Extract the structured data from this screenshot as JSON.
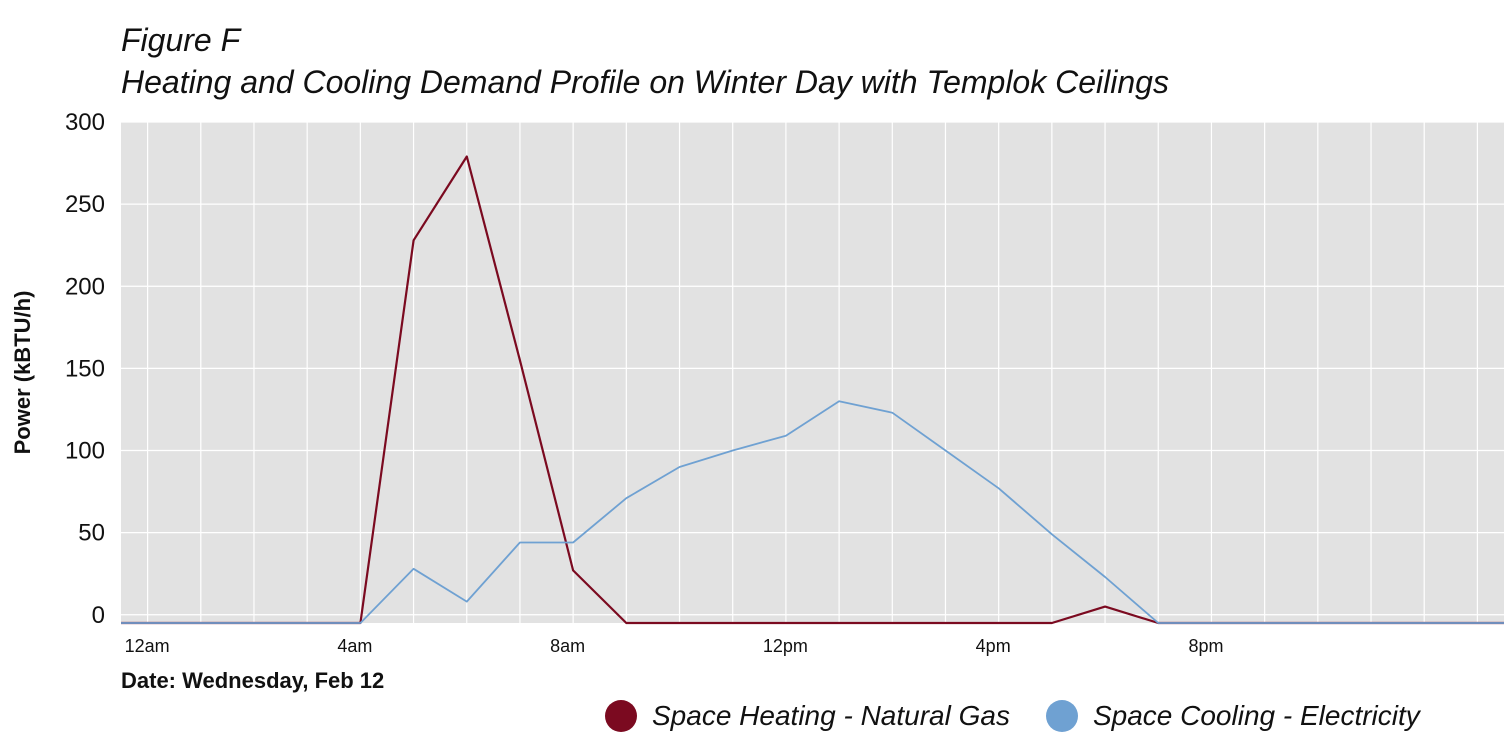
{
  "figure": {
    "title": "Figure F",
    "subtitle": "Heating and Cooling Demand Profile on Winter Day with Templok Ceilings"
  },
  "chart_data": {
    "type": "line",
    "title": "Figure F",
    "subtitle": "Heating and Cooling Demand Profile on Winter Day with Templok Ceilings",
    "xlabel": "Date: Wednesday, Feb 12",
    "ylabel": "Power (kBTU/h)",
    "x_unit": "hour of day",
    "xlim": [
      -0.5,
      25.5
    ],
    "ylim": [
      -5,
      300
    ],
    "y_ticks": [
      0,
      50,
      100,
      150,
      200,
      250,
      300
    ],
    "x_ticks": [
      {
        "value": 0,
        "label": "12am"
      },
      {
        "value": 4,
        "label": "4am"
      },
      {
        "value": 8,
        "label": "8am"
      },
      {
        "value": 12,
        "label": "12pm"
      },
      {
        "value": 16,
        "label": "4pm"
      },
      {
        "value": 20,
        "label": "8pm"
      }
    ],
    "x": [
      -0.5,
      0,
      1,
      2,
      3,
      4,
      5,
      6,
      7,
      8,
      9,
      10,
      11,
      12,
      13,
      14,
      15,
      16,
      17,
      18,
      19,
      20,
      21,
      22,
      23,
      24,
      25.5
    ],
    "grid": true,
    "legend_position": "bottom",
    "series": [
      {
        "name": "Space Heating - Natural Gas",
        "color": "#7B0A20",
        "values": [
          -5,
          -5,
          -5,
          -5,
          -5,
          -5,
          228,
          279,
          155,
          27,
          -5,
          -5,
          -5,
          -5,
          -5,
          -5,
          -5,
          -5,
          -5,
          5,
          -5,
          -5,
          -5,
          -5,
          -5,
          -5,
          -5
        ]
      },
      {
        "name": "Space Cooling - Electricity",
        "color": "#6FA1D2",
        "values": [
          -5,
          -5,
          -5,
          -5,
          -5,
          -5,
          28,
          8,
          44,
          44,
          71,
          90,
          100,
          109,
          130,
          123,
          100,
          77,
          49,
          23,
          -5,
          -5,
          -5,
          -5,
          -5,
          -5,
          -5
        ]
      }
    ]
  },
  "legend": {
    "items": [
      {
        "label": "Space Heating - Natural Gas",
        "color": "#7B0A20"
      },
      {
        "label": "Space Cooling - Electricity",
        "color": "#6FA1D2"
      }
    ]
  }
}
